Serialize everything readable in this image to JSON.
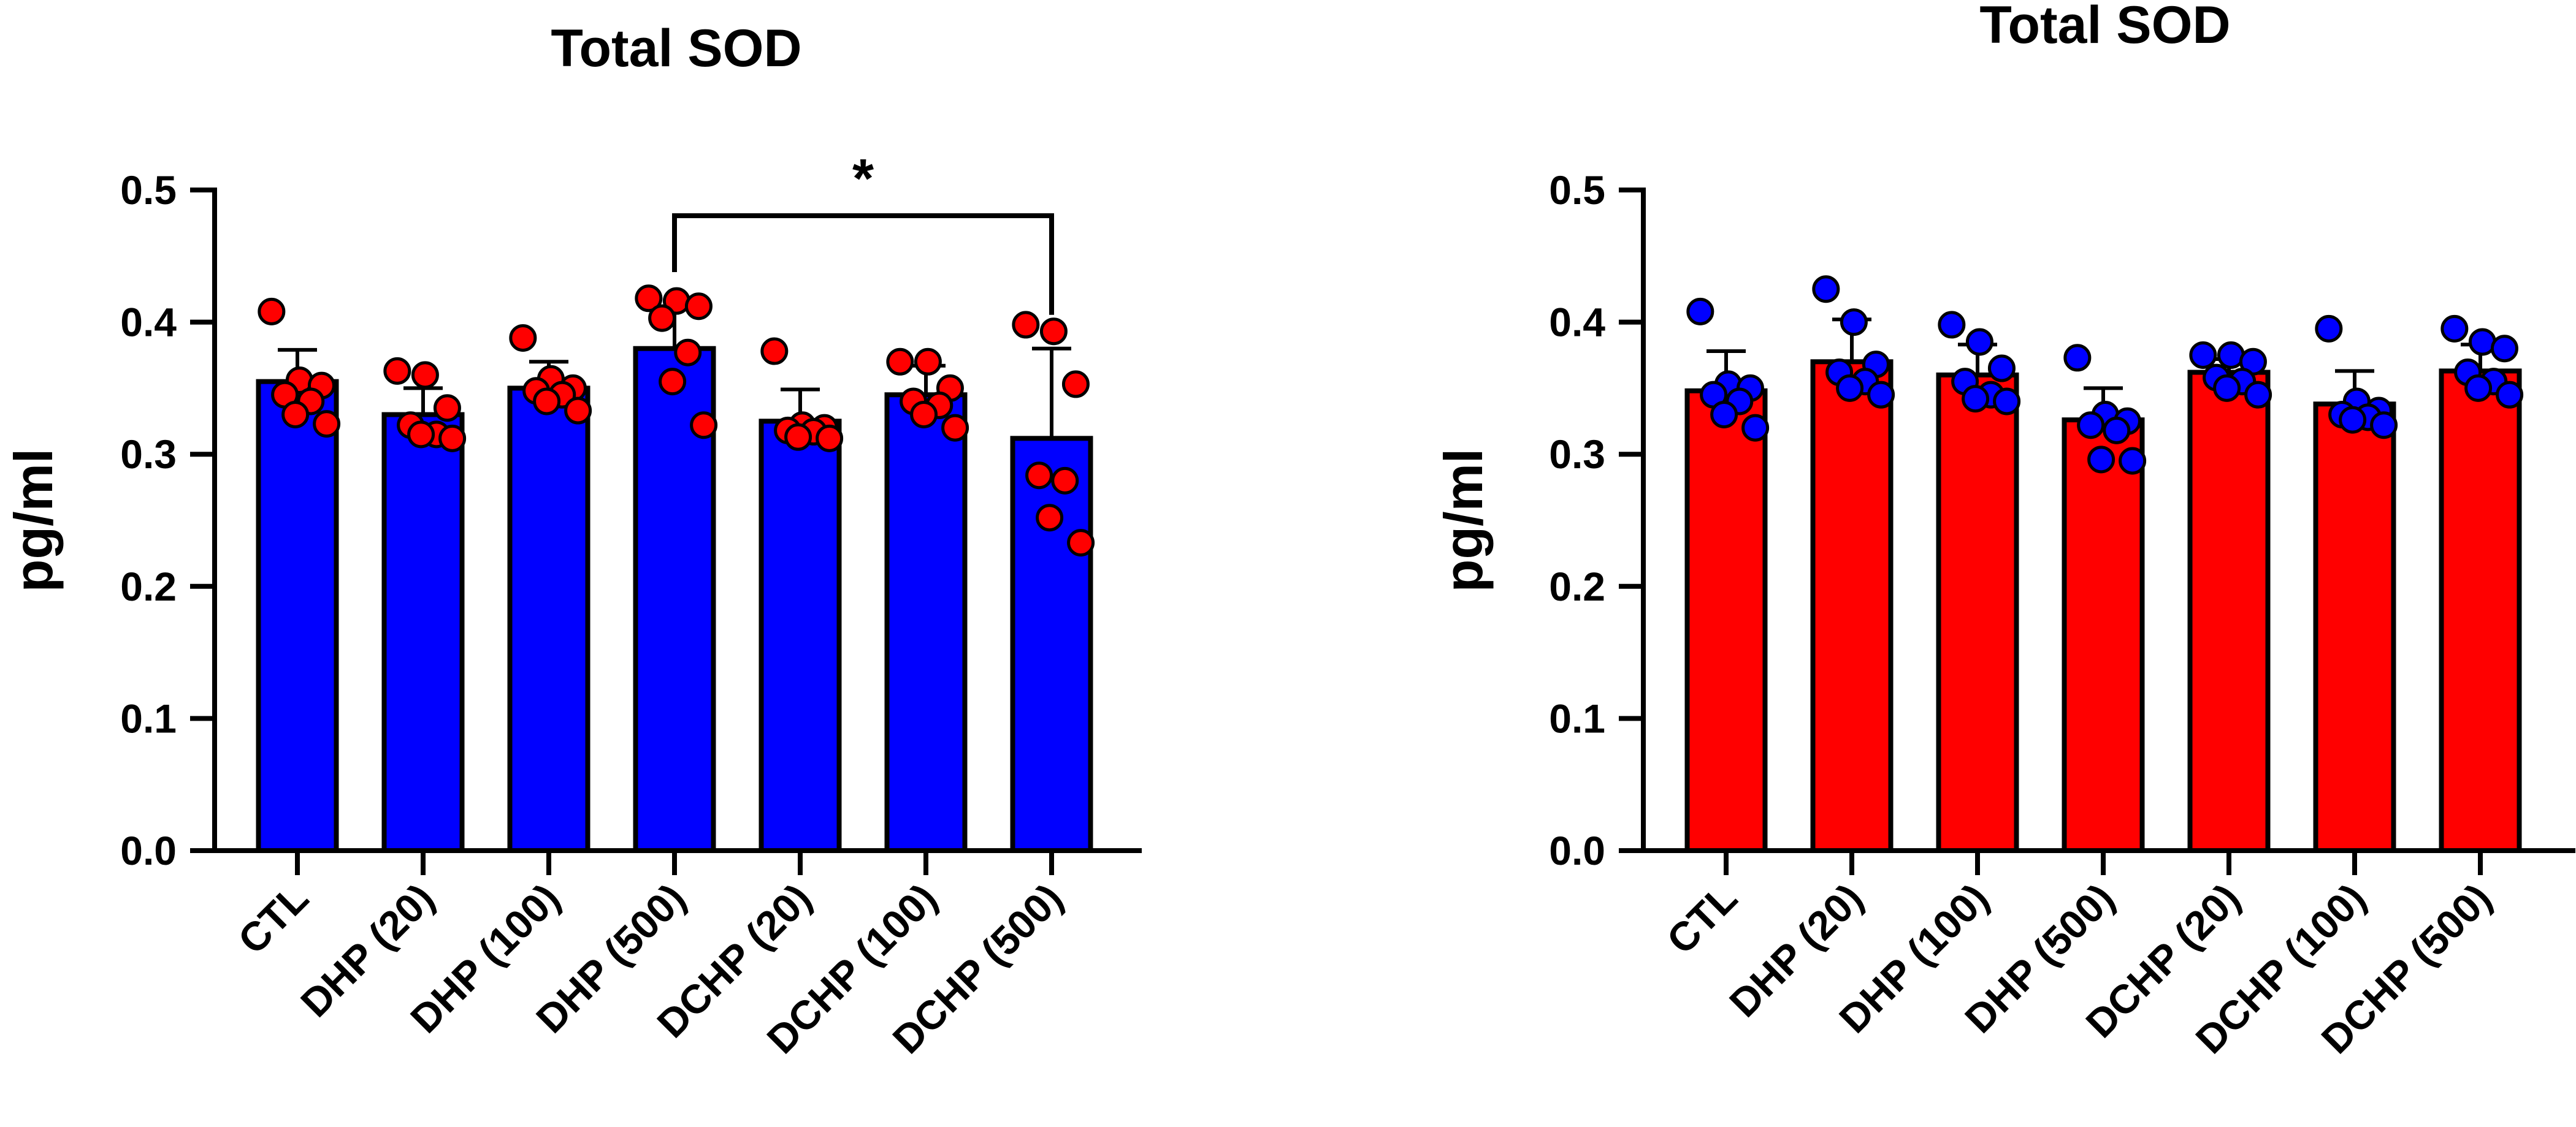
{
  "chart_data": [
    {
      "type": "bar",
      "title": "Total SOD",
      "ylabel": "pg/ml",
      "xlabel": "",
      "ylim": [
        0,
        0.5
      ],
      "yticks": [
        "0.0",
        "0.1",
        "0.2",
        "0.3",
        "0.4",
        "0.5"
      ],
      "bar_color": "#0000ff",
      "point_color": "#ff0000",
      "categories": [
        "CTL",
        "DHP (20)",
        "DHP (100)",
        "DHP (500)",
        "DCHP (20)",
        "DCHP (100)",
        "DCHP (500)"
      ],
      "values": [
        0.355,
        0.33,
        0.35,
        0.38,
        0.325,
        0.345,
        0.312
      ],
      "errors": [
        0.024,
        0.02,
        0.02,
        0.03,
        0.024,
        0.022,
        0.068
      ],
      "points": [
        [
          0.408,
          0.356,
          0.352,
          0.345,
          0.34,
          0.33,
          0.323
        ],
        [
          0.363,
          0.36,
          0.335,
          0.322,
          0.315,
          0.315,
          0.312
        ],
        [
          0.388,
          0.357,
          0.35,
          0.348,
          0.345,
          0.34,
          0.333
        ],
        [
          0.418,
          0.416,
          0.412,
          0.403,
          0.377,
          0.355,
          0.322
        ],
        [
          0.378,
          0.322,
          0.32,
          0.318,
          0.317,
          0.313,
          0.312
        ],
        [
          0.37,
          0.37,
          0.35,
          0.34,
          0.337,
          0.33,
          0.32
        ],
        [
          0.398,
          0.393,
          0.353,
          0.284,
          0.28,
          0.252,
          0.233
        ]
      ],
      "annotation": {
        "text": "*",
        "from": "DHP (500)",
        "to": "DCHP (500)"
      }
    },
    {
      "type": "bar",
      "title": "Total SOD",
      "ylabel": "pg/ml",
      "xlabel": "",
      "ylim": [
        0,
        0.5
      ],
      "yticks": [
        "0.0",
        "0.1",
        "0.2",
        "0.3",
        "0.4",
        "0.5"
      ],
      "bar_color": "#ff0000",
      "point_color": "#0000ff",
      "categories": [
        "CTL",
        "DHP (20)",
        "DHP (100)",
        "DHP (500)",
        "DCHP (20)",
        "DCHP (100)",
        "DCHP (500)"
      ],
      "values": [
        0.348,
        0.37,
        0.36,
        0.326,
        0.362,
        0.338,
        0.363
      ],
      "errors": [
        0.03,
        0.032,
        0.023,
        0.024,
        0.01,
        0.025,
        0.02
      ],
      "points": [
        [
          0.408,
          0.353,
          0.35,
          0.345,
          0.34,
          0.33,
          0.32
        ],
        [
          0.425,
          0.4,
          0.368,
          0.362,
          0.355,
          0.35,
          0.345
        ],
        [
          0.398,
          0.385,
          0.365,
          0.355,
          0.345,
          0.342,
          0.34
        ],
        [
          0.373,
          0.33,
          0.325,
          0.322,
          0.318,
          0.296,
          0.295
        ],
        [
          0.375,
          0.375,
          0.37,
          0.358,
          0.355,
          0.35,
          0.345
        ],
        [
          0.395,
          0.34,
          0.333,
          0.33,
          0.328,
          0.326,
          0.322
        ],
        [
          0.395,
          0.385,
          0.38,
          0.362,
          0.355,
          0.35,
          0.345
        ]
      ]
    }
  ]
}
